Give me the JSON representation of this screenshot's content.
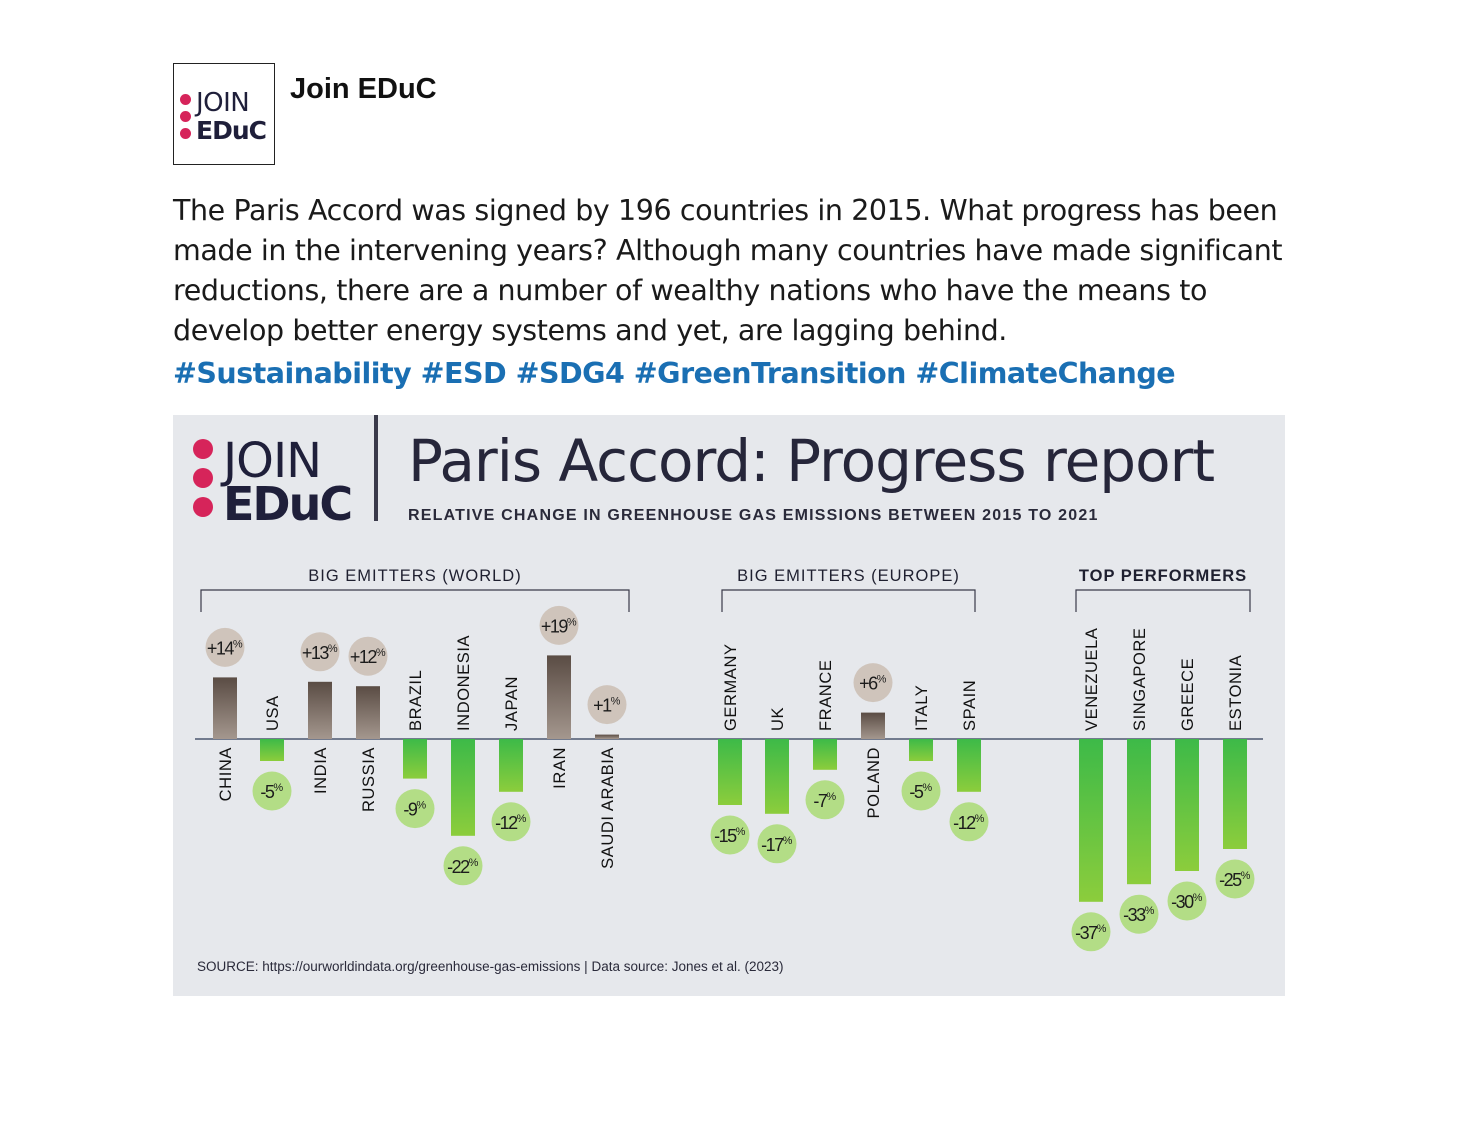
{
  "post": {
    "avatar_line1": "JOIN",
    "avatar_line2": "EDuC",
    "account_name": "Join EDuC",
    "text": "The Paris Accord was signed by 196 countries in 2015. What progress has been made in the intervening years? Although many countries have made significant reductions, there are a number of wealthy nations who have the means to develop better energy systems and yet, are lagging behind.",
    "hashtags": "#Sustainability #ESD #SDG4 #GreenTransition #ClimateChange"
  },
  "infographic": {
    "logo_line1": "JOIN",
    "logo_line2": "EDuC",
    "source": "SOURCE: https://ourworldindata.org/greenhouse-gas-emissions | Data source: Jones et al. (2023)"
  },
  "colors": {
    "increase_bar": "#7a6e66",
    "increase_badge": "#cfc4bb",
    "decrease_bar": "#4bbf48",
    "decrease_badge": "#b3dd86",
    "background": "#e6e8ec",
    "logo_pink": "#d6245a"
  },
  "chart_data": {
    "type": "bar",
    "title": "Paris Accord: Progress report",
    "subtitle": "RELATIVE CHANGE IN GREENHOUSE GAS EMISSIONS BETWEEN 2015 TO 2021",
    "unit": "%",
    "groups": [
      {
        "name": "BIG EMITTERS (WORLD)",
        "categories": [
          "CHINA",
          "USA",
          "INDIA",
          "RUSSIA",
          "BRAZIL",
          "INDONESIA",
          "JAPAN",
          "IRAN",
          "SAUDI ARABIA"
        ],
        "values": [
          14,
          -5,
          13,
          12,
          -9,
          -22,
          -12,
          19,
          1
        ],
        "labels": [
          "+14",
          "-5",
          "+13",
          "+12",
          "-9",
          "-22",
          "-12",
          "+19",
          "+1"
        ]
      },
      {
        "name": "BIG EMITTERS (EUROPE)",
        "categories": [
          "GERMANY",
          "UK",
          "FRANCE",
          "POLAND",
          "ITALY",
          "SPAIN"
        ],
        "values": [
          -15,
          -17,
          -7,
          6,
          -5,
          -12
        ],
        "labels": [
          "-15",
          "-17",
          "-7",
          "+6",
          "-5",
          "-12"
        ]
      },
      {
        "name": "TOP PERFORMERS",
        "categories": [
          "VENEZUELA",
          "SINGAPORE",
          "GREECE",
          "ESTONIA"
        ],
        "values": [
          -37,
          -33,
          -30,
          -25
        ],
        "labels": [
          "-37",
          "-33",
          "-30",
          "-25"
        ]
      }
    ]
  }
}
